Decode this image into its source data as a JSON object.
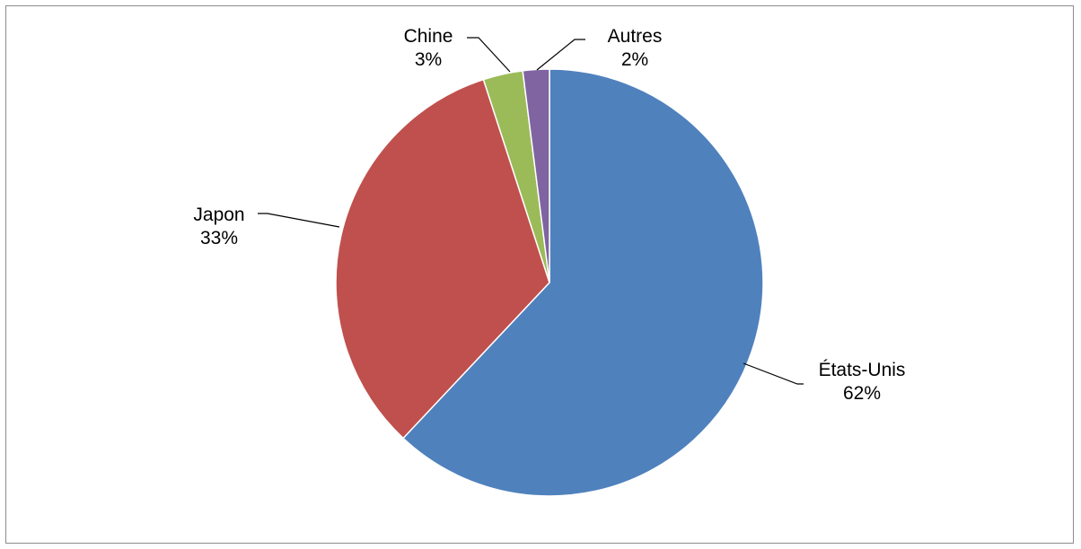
{
  "chart_data": {
    "type": "pie",
    "slices": [
      {
        "category": "États-Unis",
        "value": 62,
        "value_label": "62%",
        "color": "#4F81BD"
      },
      {
        "category": "Japon",
        "value": 33,
        "value_label": "33%",
        "color": "#C0504D"
      },
      {
        "category": "Chine",
        "value": 3,
        "value_label": "3%",
        "color": "#9BBB59"
      },
      {
        "category": "Autres",
        "value": 2,
        "value_label": "2%",
        "color": "#8064A2"
      }
    ],
    "start_angle_deg": 0,
    "direction": "clockwise",
    "legend": "none",
    "data_labels": "outside with leader lines"
  }
}
